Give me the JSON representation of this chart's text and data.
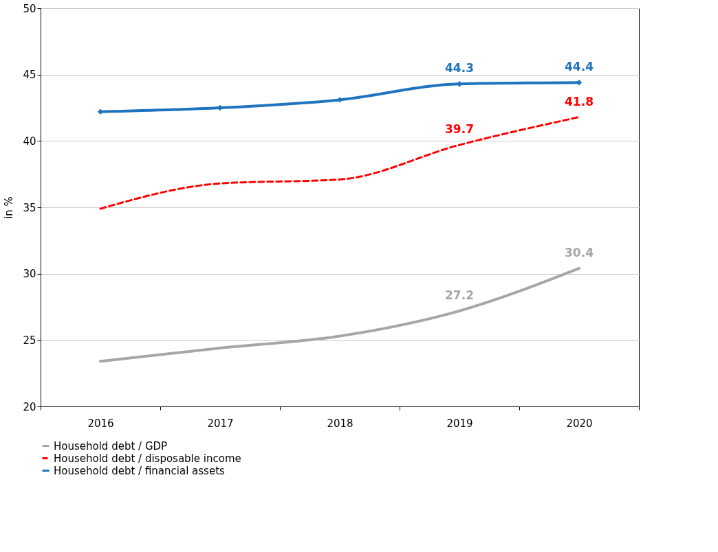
{
  "chart_data": {
    "type": "line",
    "ylabel": "in %",
    "categories": [
      "2016",
      "2017",
      "2018",
      "2019",
      "2020"
    ],
    "ylim": [
      20,
      50
    ],
    "yticks": [
      20,
      25,
      30,
      35,
      40,
      45,
      50
    ],
    "grid": "y",
    "legend": "bottom",
    "series": [
      {
        "name": "Household debt / GDP",
        "color": "#a6a6a6",
        "line_style": "solid",
        "marker": "none",
        "values": [
          23.4,
          24.4,
          25.3,
          27.2,
          30.4
        ],
        "value_labels": [
          null,
          null,
          null,
          "27.2",
          "30.4"
        ]
      },
      {
        "name": "Household debt / disposable income",
        "color": "#ff0000",
        "line_style": "dashed",
        "marker": "none",
        "values": [
          34.9,
          36.8,
          37.1,
          39.7,
          41.8
        ],
        "value_labels": [
          null,
          null,
          null,
          "39.7",
          "41.8"
        ]
      },
      {
        "name": "Household debt / financial assets",
        "color": "#1f74bf",
        "line_style": "solid",
        "marker": "diamond",
        "values": [
          42.2,
          42.5,
          43.1,
          44.3,
          44.4
        ],
        "value_labels": [
          null,
          null,
          null,
          "44.3",
          "44.4"
        ]
      }
    ]
  }
}
